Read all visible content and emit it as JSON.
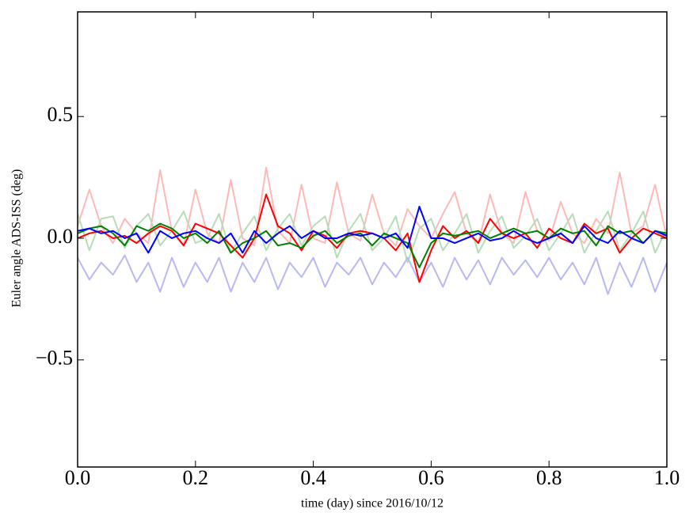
{
  "chart_data": {
    "type": "line",
    "xlabel": "time (day) since 2016/10/12",
    "ylabel": "Euler angle ADS-ISS (deg)",
    "x": [
      0,
      0.02,
      0.04,
      0.06,
      0.08,
      0.1,
      0.12,
      0.14,
      0.16,
      0.18,
      0.2,
      0.22,
      0.24,
      0.26,
      0.28,
      0.3,
      0.32,
      0.34,
      0.36,
      0.38,
      0.4,
      0.42,
      0.44,
      0.46,
      0.48,
      0.5,
      0.52,
      0.54,
      0.56,
      0.58,
      0.6,
      0.62,
      0.64,
      0.66,
      0.68,
      0.7,
      0.72,
      0.74,
      0.76,
      0.78,
      0.8,
      0.82,
      0.84,
      0.86,
      0.88,
      0.9,
      0.92,
      0.94,
      0.96,
      0.98,
      1.0
    ],
    "xlim": [
      0,
      1
    ],
    "xticks": [
      {
        "value": 0,
        "label": "0.0"
      },
      0.2,
      0.4,
      0.6,
      0.8,
      {
        "value": 1,
        "label": "1.0"
      }
    ],
    "ylim": [
      -0.94,
      0.93
    ],
    "yticks": [
      {
        "value": -0.5,
        "label": "−0.5"
      },
      {
        "value": 0,
        "label": "0.0"
      },
      0.5
    ],
    "series": [
      {
        "color": "#ffb8b8",
        "values": [
          0.05,
          0.2,
          0.05,
          -0.02,
          0.08,
          0.02,
          -0.02,
          0.28,
          0.03,
          -0.03,
          0.2,
          0.02,
          -0.02,
          0.24,
          0.0,
          -0.03,
          0.29,
          0.03,
          -0.02,
          0.22,
          0.0,
          -0.02,
          0.23,
          0.02,
          -0.01,
          0.18,
          0.02,
          -0.03,
          0.12,
          0.05,
          0.0,
          0.1,
          0.19,
          0.02,
          -0.02,
          0.18,
          0.02,
          -0.02,
          0.19,
          0.03,
          -0.01,
          0.15,
          0.02,
          -0.02,
          0.08,
          0.02,
          0.27,
          0.02,
          0.05,
          0.22,
          0.0
        ]
      },
      {
        "color": "#b8dcb8",
        "values": [
          0.1,
          -0.05,
          0.08,
          0.09,
          -0.04,
          0.05,
          0.1,
          -0.03,
          0.03,
          0.11,
          -0.02,
          0.0,
          0.1,
          -0.06,
          0.02,
          0.09,
          -0.05,
          0.04,
          0.1,
          -0.03,
          0.05,
          0.09,
          -0.08,
          0.03,
          0.1,
          -0.05,
          0.0,
          0.09,
          -0.1,
          0.04,
          0.08,
          -0.05,
          0.02,
          0.1,
          -0.06,
          0.03,
          0.09,
          -0.04,
          0.01,
          0.08,
          -0.05,
          0.02,
          0.1,
          -0.06,
          0.03,
          0.11,
          -0.05,
          0.02,
          0.11,
          -0.06,
          0.04
        ]
      },
      {
        "color": "#b8b8f4",
        "values": [
          -0.08,
          -0.17,
          -0.1,
          -0.15,
          -0.07,
          -0.18,
          -0.1,
          -0.22,
          -0.08,
          -0.2,
          -0.1,
          -0.18,
          -0.08,
          -0.22,
          -0.1,
          -0.18,
          -0.08,
          -0.21,
          -0.1,
          -0.16,
          -0.08,
          -0.2,
          -0.1,
          -0.15,
          -0.08,
          -0.19,
          -0.1,
          -0.16,
          -0.08,
          -0.18,
          -0.1,
          -0.2,
          -0.08,
          -0.17,
          -0.09,
          -0.19,
          -0.08,
          -0.15,
          -0.09,
          -0.16,
          -0.08,
          -0.17,
          -0.1,
          -0.19,
          -0.08,
          -0.23,
          -0.1,
          -0.2,
          -0.08,
          -0.22,
          -0.1
        ]
      },
      {
        "color": "#ff0000",
        "values": [
          0.0,
          0.02,
          0.03,
          0.0,
          0.01,
          -0.02,
          0.02,
          0.05,
          0.03,
          -0.03,
          0.06,
          0.04,
          0.02,
          -0.03,
          -0.08,
          0.0,
          0.18,
          0.05,
          0.02,
          -0.05,
          0.03,
          0.01,
          -0.04,
          0.02,
          0.03,
          0.02,
          0.0,
          -0.05,
          0.02,
          -0.18,
          -0.05,
          0.05,
          0.0,
          0.03,
          -0.02,
          0.08,
          0.02,
          0.0,
          0.02,
          -0.04,
          0.04,
          0.0,
          -0.02,
          0.06,
          0.02,
          0.04,
          -0.06,
          0.0,
          0.04,
          0.02,
          0.0
        ]
      },
      {
        "color": "#008000",
        "values": [
          0.02,
          0.04,
          0.05,
          0.02,
          -0.03,
          0.05,
          0.03,
          0.06,
          0.04,
          0.0,
          0.02,
          -0.02,
          0.03,
          -0.06,
          -0.02,
          0.0,
          0.03,
          -0.03,
          -0.02,
          -0.04,
          0.01,
          0.03,
          -0.02,
          0.01,
          0.02,
          -0.03,
          0.02,
          0.0,
          -0.02,
          -0.12,
          -0.02,
          0.02,
          0.01,
          0.02,
          0.03,
          0.0,
          0.02,
          0.04,
          0.02,
          0.03,
          0.0,
          0.04,
          0.02,
          0.03,
          -0.03,
          0.05,
          0.02,
          0.03,
          -0.02,
          0.03,
          0.02
        ]
      },
      {
        "color": "#0000ff",
        "values": [
          0.03,
          0.04,
          0.02,
          0.03,
          0.0,
          0.02,
          -0.06,
          0.03,
          0.0,
          0.02,
          0.03,
          0.0,
          -0.02,
          0.02,
          -0.06,
          0.03,
          -0.02,
          0.02,
          0.05,
          0.0,
          0.03,
          0.0,
          0.0,
          0.02,
          0.01,
          0.02,
          0.0,
          0.02,
          -0.04,
          0.13,
          0.0,
          0.0,
          -0.02,
          0.0,
          0.02,
          -0.01,
          0.0,
          0.03,
          0.0,
          -0.02,
          0.0,
          0.02,
          -0.02,
          0.05,
          0.0,
          -0.02,
          0.03,
          0.0,
          -0.02,
          0.03,
          0.01
        ]
      }
    ]
  }
}
